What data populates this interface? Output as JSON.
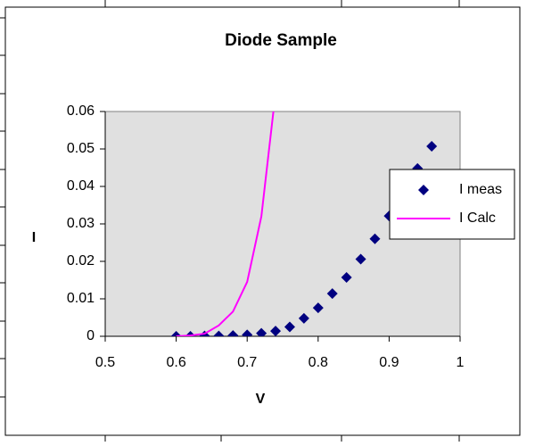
{
  "chart_data": {
    "type": "scatter",
    "title": "Diode Sample",
    "x_label": "V",
    "y_label": "I",
    "xlim": [
      0.5,
      1
    ],
    "xticks": [
      0.5,
      0.6,
      0.7,
      0.8,
      0.9,
      1
    ],
    "ylim": [
      0,
      0.06
    ],
    "yticks": [
      0,
      0.01,
      0.02,
      0.03,
      0.04,
      0.05,
      0.06
    ],
    "plot_background": "#e0e0e0",
    "series": [
      {
        "name": "I meas",
        "color": "#000080",
        "style": "markers",
        "x": [
          0.6,
          0.62,
          0.64,
          0.66,
          0.68,
          0.7,
          0.72,
          0.74,
          0.76,
          0.78,
          0.8,
          0.82,
          0.84,
          0.86,
          0.88,
          0.9,
          0.92,
          0.94,
          0.96
        ],
        "values": [
          0,
          0,
          0.0001,
          0.0001,
          0.0002,
          0.0004,
          0.0008,
          0.0014,
          0.0025,
          0.0048,
          0.0076,
          0.0114,
          0.0157,
          0.0206,
          0.026,
          0.0321,
          0.0378,
          0.0448,
          0.0507
        ]
      },
      {
        "name": "I Calc",
        "color": "#ff00ff",
        "style": "line",
        "x": [
          0.6,
          0.62,
          0.64,
          0.66,
          0.68,
          0.7,
          0.72,
          0.74
        ],
        "values": [
          0,
          0.0002,
          0.0007,
          0.0029,
          0.0066,
          0.0145,
          0.032,
          0.065
        ]
      }
    ]
  }
}
